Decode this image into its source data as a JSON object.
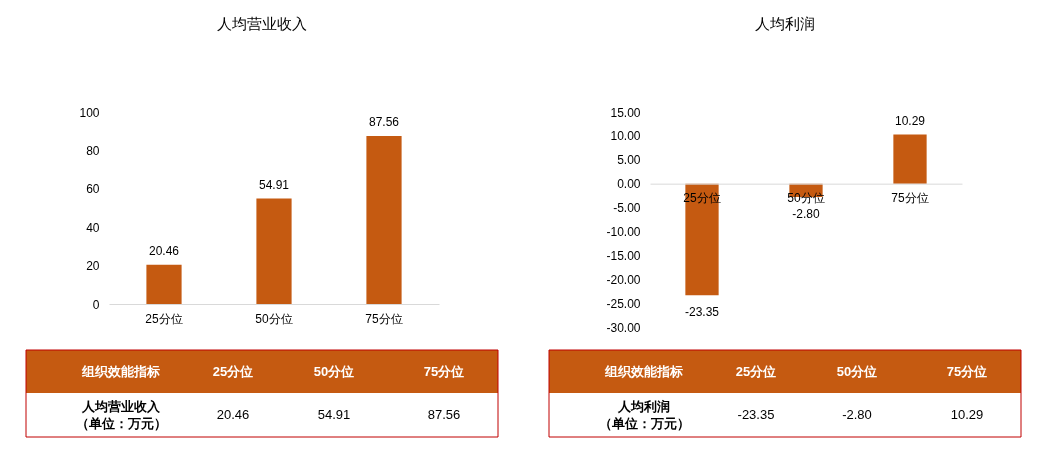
{
  "chart_data": [
    {
      "type": "bar",
      "title": "人均营业收入",
      "categories": [
        "25分位",
        "50分位",
        "75分位"
      ],
      "values": [
        20.46,
        54.91,
        87.56
      ],
      "color": "#c55a11",
      "ylim": [
        0,
        100
      ],
      "yticks": [
        0,
        20,
        40,
        60,
        80,
        100
      ],
      "data_labels": true,
      "annotations": [
        "组织效能指标",
        "人均营业收入",
        "（单位：万元）",
        "20.46",
        "54.91",
        "87.56"
      ]
    },
    {
      "type": "bar",
      "title": "人均利润",
      "categories": [
        "25分位",
        "50分位",
        "75分位"
      ],
      "values": [
        -23.35,
        -2.8,
        10.29
      ],
      "value_labels": [
        "-23.35",
        "-2.80",
        "10.29"
      ],
      "color": "#c55a11",
      "ylim": [
        -30,
        15
      ],
      "yticks": [
        {
          "value": 15,
          "label": "15.00"
        },
        {
          "value": 10,
          "label": "10.00"
        },
        {
          "value": 5,
          "label": "5.00"
        },
        {
          "value": 0,
          "label": "0.00"
        },
        {
          "value": -5,
          "label": "-5.00"
        },
        {
          "value": -10,
          "label": "-10.00"
        },
        {
          "value": -15,
          "label": "-15.00"
        },
        {
          "value": -20,
          "label": "-20.00"
        },
        {
          "value": -25,
          "label": "-25.00"
        },
        {
          "value": -30,
          "label": "-30.00"
        }
      ],
      "annotations": [
        "组织效能指标",
        "人均利润",
        "（单位：万元）",
        "-23.35",
        "-2.80",
        "10.29"
      ]
    }
  ]
}
